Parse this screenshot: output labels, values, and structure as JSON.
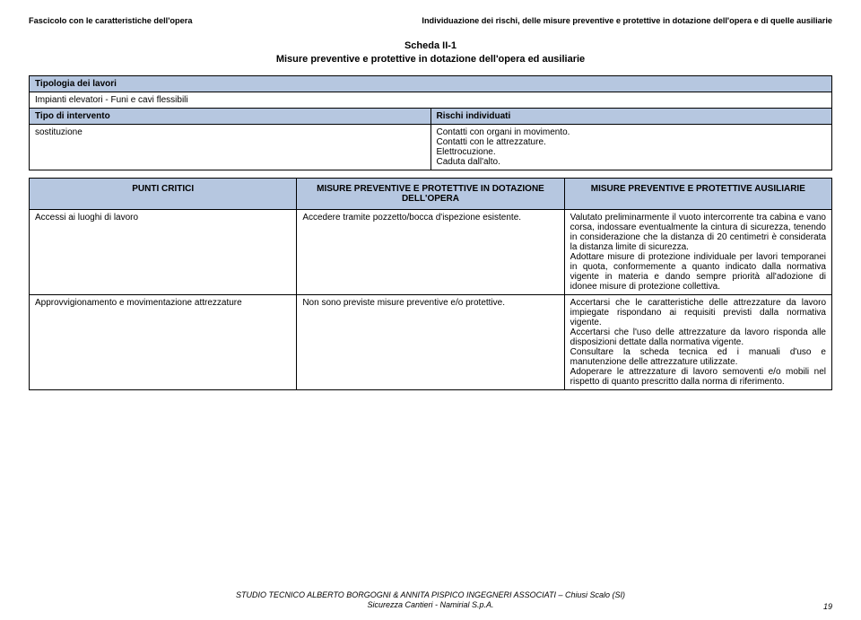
{
  "header": {
    "left": "Fascicolo con le caratteristiche dell'opera",
    "right": "Individuazione dei rischi, delle misure preventive e protettive in dotazione dell'opera e di quelle ausiliarie"
  },
  "scheda": {
    "line1": "Scheda II-1",
    "line2": "Misure preventive e protettive in dotazione dell'opera ed ausiliarie"
  },
  "table1": {
    "tipologia_label": "Tipologia dei lavori",
    "tipologia_value": "Impianti elevatori - Funi e cavi flessibili",
    "tipo_intervento_label": "Tipo di intervento",
    "rischi_label": "Rischi individuati",
    "sostituzione_label": "sostituzione",
    "rischi_text": "Contatti con organi in movimento.\nContatti con le attrezzature.\nElettrocuzione.\nCaduta dall'alto."
  },
  "table2": {
    "col1": "PUNTI CRITICI",
    "col2": "MISURE PREVENTIVE E PROTETTIVE IN DOTAZIONE DELL'OPERA",
    "col3": "MISURE PREVENTIVE E PROTETTIVE AUSILIARIE",
    "rows": [
      {
        "c1": "Accessi ai luoghi di lavoro",
        "c2": "Accedere tramite pozzetto/bocca d'ispezione esistente.",
        "c3": "Valutato preliminarmente il vuoto intercorrente tra cabina e vano corsa, indossare eventualmente la cintura di sicurezza, tenendo in considerazione che la distanza di 20 centimetri è considerata la distanza limite di sicurezza.\nAdottare misure di protezione individuale per lavori temporanei in quota, conformemente a quanto indicato dalla normativa vigente in materia e dando sempre priorità all'adozione di idonee misure di protezione collettiva."
      },
      {
        "c1": "Approvvigionamento e movimentazione attrezzature",
        "c2": "Non sono previste misure preventive e/o protettive.",
        "c3": "Accertarsi che le caratteristiche delle attrezzature da lavoro impiegate rispondano ai requisiti previsti dalla normativa vigente.\nAccertarsi che l'uso delle attrezzature da lavoro risponda alle disposizioni dettate dalla normativa vigente.\nConsultare la scheda tecnica ed i manuali d'uso e manutenzione delle attrezzature utilizzate.\nAdoperare le attrezzature di lavoro semoventi e/o mobili nel rispetto di quanto prescritto dalla norma di riferimento."
      }
    ]
  },
  "footer": {
    "line1": "STUDIO TECNICO ALBERTO BORGOGNI & ANNITA PISPICO INGEGNERI ASSOCIATI – Chiusi Scalo (SI)",
    "line2": "Sicurezza Cantieri - Namirial S.p.A.",
    "page": "19"
  }
}
